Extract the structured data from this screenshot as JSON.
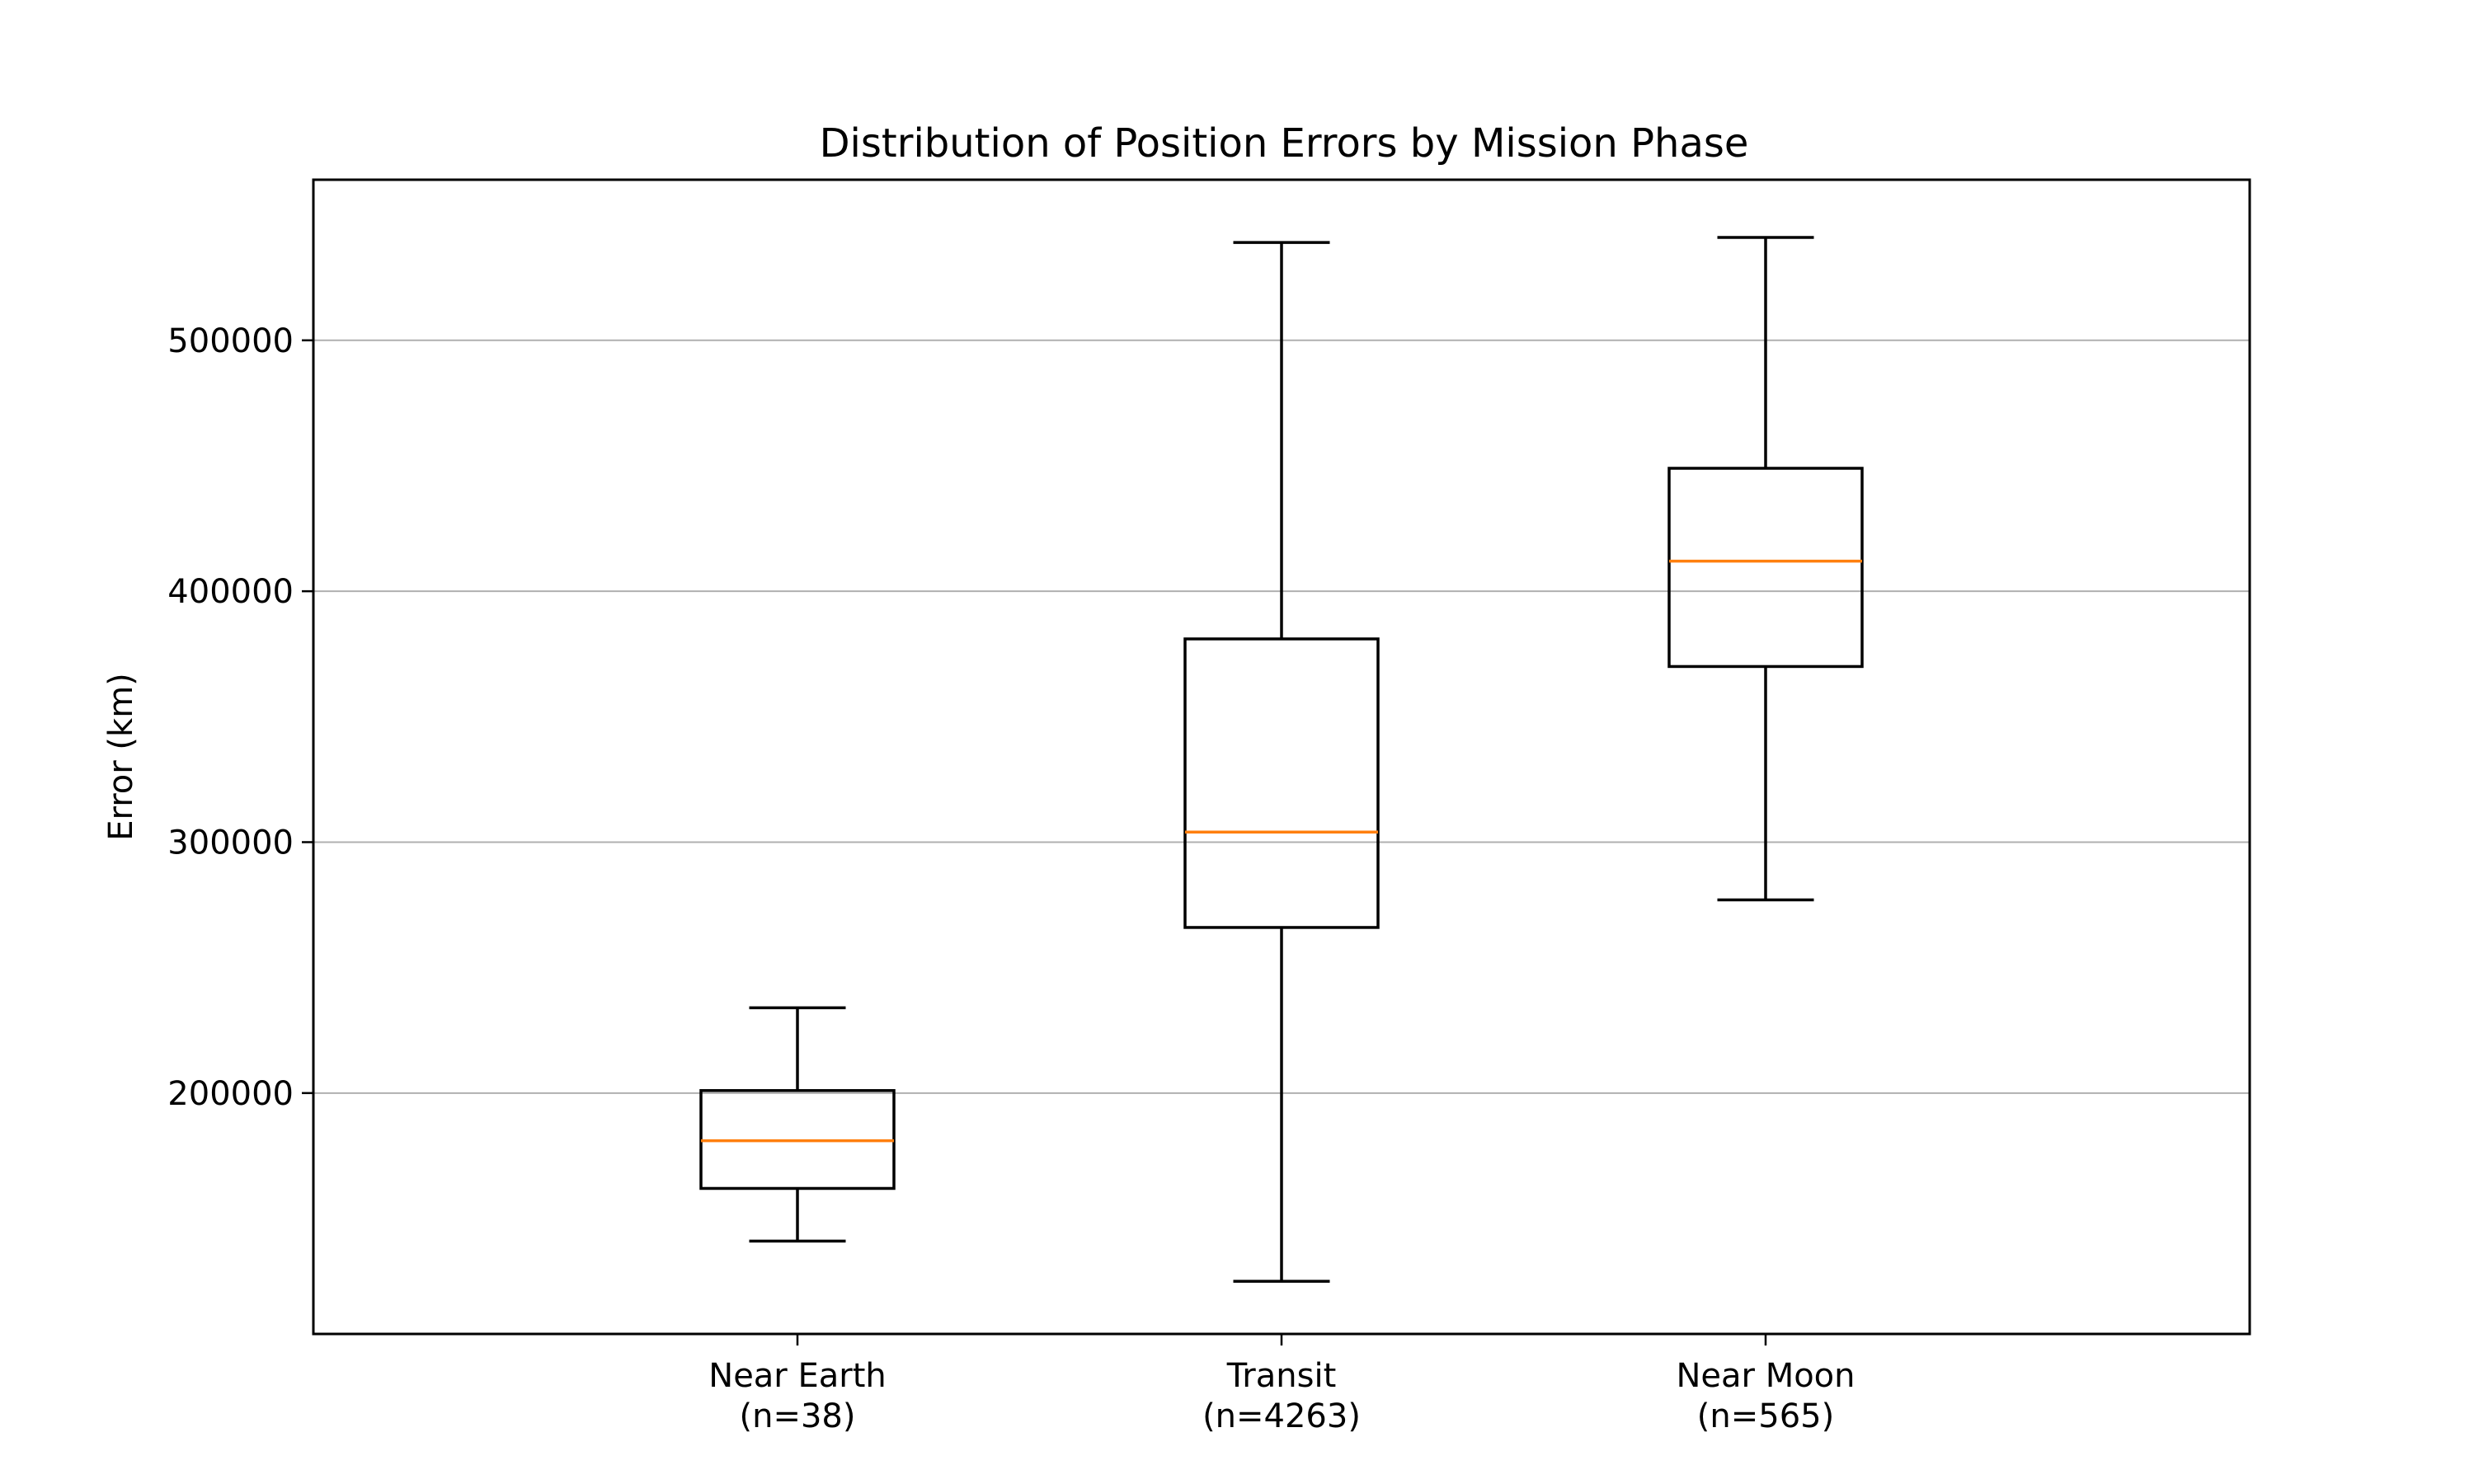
{
  "chart_data": {
    "type": "box",
    "title": "Distribution of Position Errors by Mission Phase",
    "xlabel": "",
    "ylabel": "Error (km)",
    "ylim": [
      104000,
      564000
    ],
    "yticks": [
      200000,
      300000,
      400000,
      500000
    ],
    "ytick_labels": [
      "200000",
      "300000",
      "400000",
      "500000"
    ],
    "grid": "y",
    "categories": [
      {
        "name": "Near Earth",
        "n_label": "(n=38)"
      },
      {
        "name": "Transit",
        "n_label": "(n=4263)"
      },
      {
        "name": "Near Moon",
        "n_label": "(n=565)"
      }
    ],
    "boxes": [
      {
        "whislo": 141000,
        "q1": 162000,
        "median": 181000,
        "q3": 201000,
        "whishi": 234000
      },
      {
        "whislo": 125000,
        "q1": 266000,
        "median": 304000,
        "q3": 381000,
        "whishi": 539000
      },
      {
        "whislo": 277000,
        "q1": 370000,
        "median": 412000,
        "q3": 449000,
        "whishi": 541000
      }
    ],
    "colors": {
      "box": "#000000",
      "median": "#ff7f0e",
      "grid": "#b0b0b0"
    }
  }
}
